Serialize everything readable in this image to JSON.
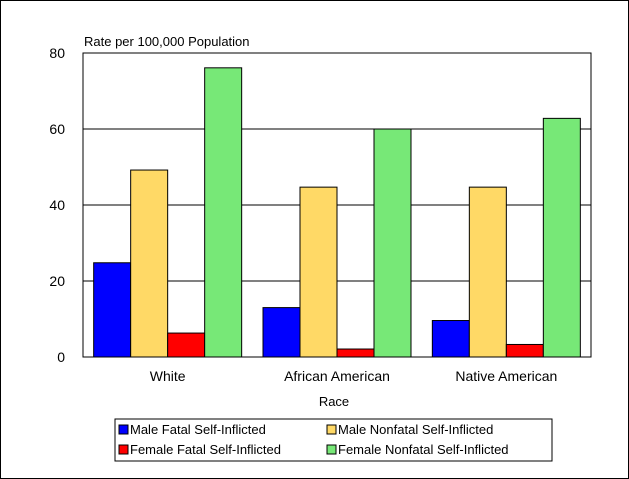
{
  "chart_data": {
    "type": "bar",
    "title": "",
    "ylabel": "Rate per 100,000 Population",
    "xlabel": "Race",
    "categories": [
      "White",
      "African American",
      "Native American"
    ],
    "ylim": [
      0,
      80
    ],
    "yticks": [
      0,
      20,
      40,
      60,
      80
    ],
    "grid": true,
    "legend_position": "bottom",
    "series": [
      {
        "name": "Male Fatal Self-Inflicted",
        "color": "#0000ff",
        "values": [
          24.8,
          13.0,
          9.6
        ]
      },
      {
        "name": "Male Nonfatal Self-Inflicted",
        "color": "#ffd966",
        "values": [
          49.2,
          44.7,
          44.7
        ]
      },
      {
        "name": "Female Fatal Self-Inflicted",
        "color": "#ff0000",
        "values": [
          6.3,
          2.1,
          3.3
        ]
      },
      {
        "name": "Female Nonfatal Self-Inflicted",
        "color": "#77e877",
        "values": [
          76.1,
          60.0,
          62.8
        ]
      }
    ]
  }
}
